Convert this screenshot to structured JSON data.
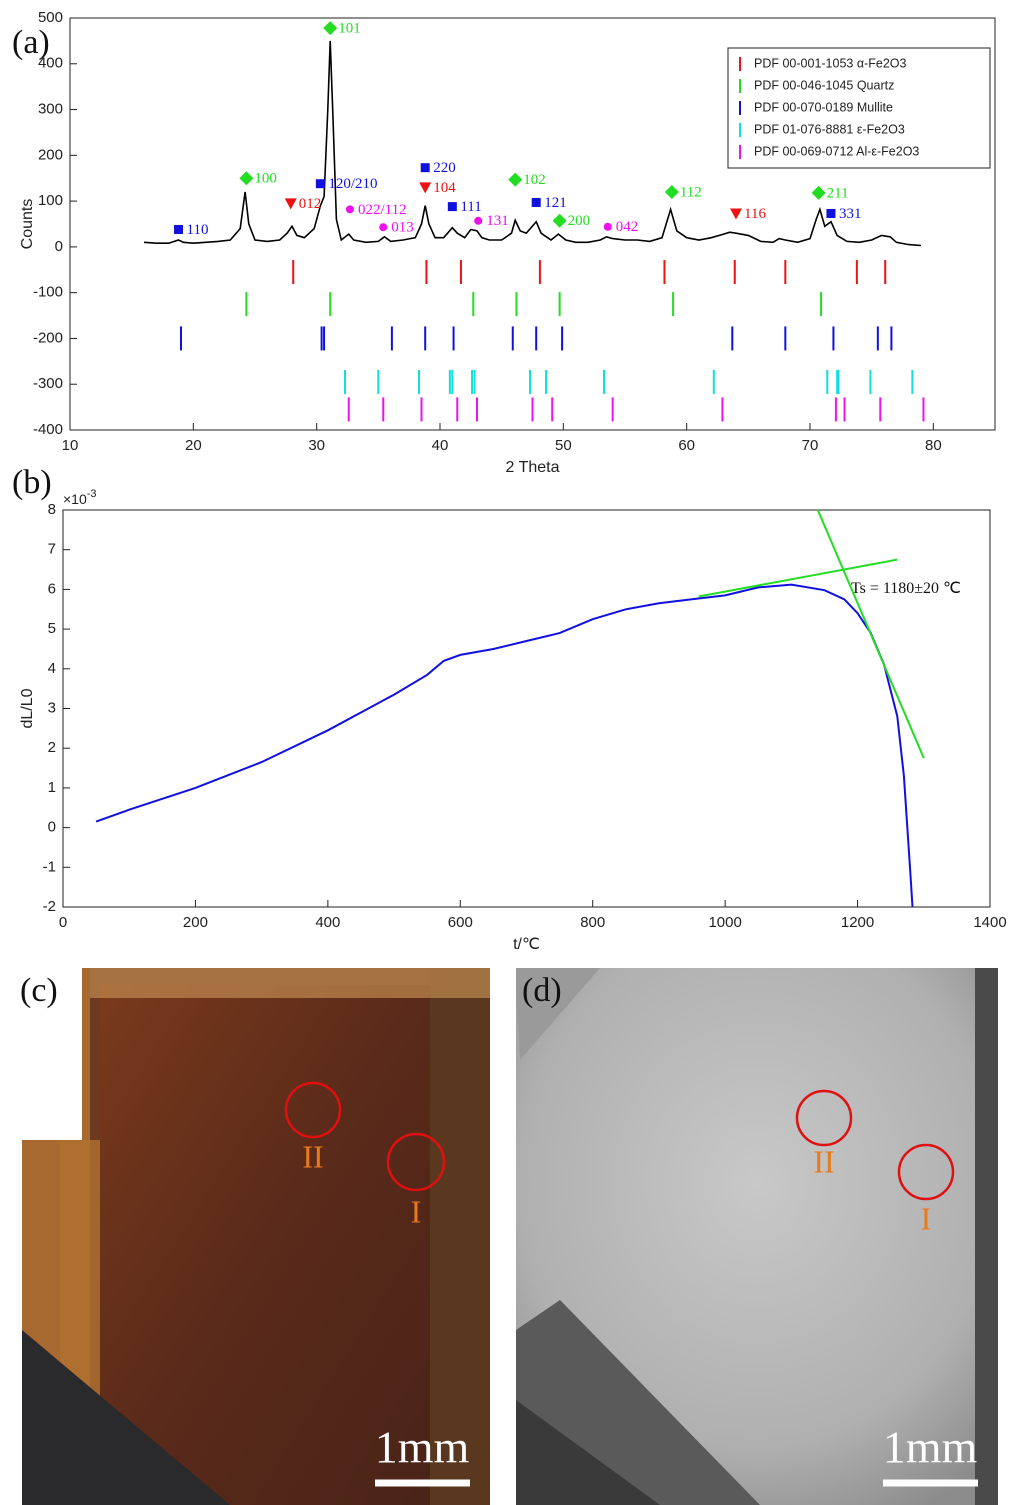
{
  "chart_data": [
    {
      "type": "line",
      "panel_label": "(a)",
      "xlabel": "2 Theta",
      "ylabel": "Counts",
      "xlim": [
        10,
        85
      ],
      "xticks": [
        10,
        20,
        30,
        40,
        50,
        60,
        70,
        80
      ],
      "ylim": [
        -400,
        500
      ],
      "yticks": [
        -400,
        -300,
        -200,
        -100,
        0,
        100,
        200,
        300,
        400,
        500
      ],
      "legend": "upper right",
      "series": [
        {
          "color": "#000000",
          "x": [
            16,
            17,
            18,
            18.8,
            19.2,
            20,
            21,
            22,
            23,
            23.8,
            24.2,
            24.5,
            25,
            26,
            27,
            27.6,
            28,
            28.4,
            29,
            29.8,
            30.3,
            30.6,
            30.9,
            31.1,
            31.3,
            31.6,
            32,
            32.6,
            33,
            34,
            35,
            35.5,
            36,
            37,
            38,
            38.5,
            38.8,
            39.1,
            39.6,
            40.3,
            41,
            41.4,
            42,
            42.5,
            43,
            43.4,
            44,
            45,
            45.8,
            46.1,
            46.5,
            47,
            47.8,
            48.2,
            49,
            49.6,
            50.2,
            51,
            52,
            53,
            53.5,
            54,
            55,
            56,
            57,
            58,
            58.7,
            59.2,
            60,
            61,
            62,
            63,
            63.5,
            64,
            65,
            66,
            67,
            67.5,
            68,
            69,
            70,
            70.5,
            70.8,
            71.2,
            71.7,
            72.2,
            73,
            74,
            75,
            75.8,
            76.5,
            77,
            78,
            79
          ],
          "values": [
            10,
            8,
            8,
            15,
            10,
            8,
            10,
            12,
            15,
            40,
            120,
            50,
            15,
            12,
            15,
            30,
            45,
            25,
            20,
            40,
            90,
            110,
            300,
            450,
            300,
            60,
            15,
            28,
            15,
            10,
            12,
            22,
            12,
            15,
            20,
            50,
            90,
            50,
            20,
            20,
            42,
            30,
            20,
            38,
            35,
            20,
            15,
            15,
            30,
            58,
            35,
            30,
            55,
            30,
            15,
            28,
            15,
            10,
            10,
            15,
            22,
            18,
            15,
            15,
            12,
            20,
            82,
            35,
            20,
            15,
            20,
            28,
            32,
            30,
            25,
            12,
            10,
            18,
            15,
            10,
            18,
            60,
            82,
            45,
            55,
            25,
            12,
            10,
            15,
            25,
            22,
            10,
            5,
            3
          ]
        }
      ],
      "reference_patterns": [
        {
          "name": "PDF 00-001-1053 α-Fe2O3",
          "color": "#ee1111",
          "level": -55,
          "x": [
            28.1,
            38.9,
            41.7,
            48.1,
            58.2,
            63.9,
            68.0,
            73.8,
            76.1
          ]
        },
        {
          "name": "PDF 00-046-1045 Quartz",
          "color": "#22dd22",
          "level": -125,
          "x": [
            24.3,
            31.1,
            42.7,
            46.2,
            49.7,
            58.9,
            70.9
          ]
        },
        {
          "name": "PDF 00-070-0189 Mullite",
          "color": "#1111dd",
          "level": -200,
          "x": [
            19.0,
            30.4,
            30.6,
            36.1,
            38.8,
            41.1,
            45.9,
            47.8,
            49.9,
            63.7,
            68.0,
            71.9,
            75.5,
            76.6
          ]
        },
        {
          "name": "PDF 01-076-8881 ε-Fe2O3",
          "color": "#11dddd",
          "level": -295,
          "x": [
            32.3,
            35.0,
            38.3,
            40.8,
            41.0,
            42.6,
            42.8,
            47.3,
            48.6,
            53.3,
            62.2,
            71.4,
            72.2,
            72.3,
            74.9,
            78.3
          ]
        },
        {
          "name": "PDF 00-069-0712 Al-ε-Fe2O3",
          "color": "#ee11ee",
          "level": -355,
          "x": [
            32.6,
            35.4,
            38.5,
            41.4,
            43.0,
            47.5,
            49.1,
            54.0,
            62.9,
            72.1,
            72.8,
            75.7,
            79.2
          ]
        }
      ],
      "annotations": [
        {
          "label": "110",
          "x": 18.8,
          "y": 38,
          "marker": "square",
          "color": "#1111dd"
        },
        {
          "label": "100",
          "x": 24.3,
          "y": 150,
          "marker": "diamond",
          "color": "#22dd22"
        },
        {
          "label": "012",
          "x": 27.9,
          "y": 95,
          "marker": "triangle",
          "color": "#ee1111"
        },
        {
          "label": "120/210",
          "x": 30.3,
          "y": 138,
          "marker": "square",
          "color": "#1111dd"
        },
        {
          "label": "101",
          "x": 31.1,
          "y": 478,
          "marker": "diamond",
          "color": "#22dd22"
        },
        {
          "label": "022/112",
          "x": 32.7,
          "y": 82,
          "marker": "circle",
          "color": "#ee11ee"
        },
        {
          "label": "013",
          "x": 35.4,
          "y": 43,
          "marker": "circle",
          "color": "#ee11ee"
        },
        {
          "label": "220",
          "x": 38.8,
          "y": 173,
          "marker": "square",
          "color": "#1111dd"
        },
        {
          "label": "104",
          "x": 38.8,
          "y": 130,
          "marker": "triangle",
          "color": "#ee1111"
        },
        {
          "label": "111",
          "x": 41.0,
          "y": 88,
          "marker": "square",
          "color": "#1111dd"
        },
        {
          "label": "131",
          "x": 43.1,
          "y": 57,
          "marker": "circle",
          "color": "#ee11ee"
        },
        {
          "label": "102",
          "x": 46.1,
          "y": 147,
          "marker": "diamond",
          "color": "#22dd22"
        },
        {
          "label": "121",
          "x": 47.8,
          "y": 97,
          "marker": "square",
          "color": "#1111dd"
        },
        {
          "label": "200",
          "x": 49.7,
          "y": 57,
          "marker": "diamond",
          "color": "#22dd22"
        },
        {
          "label": "042",
          "x": 53.6,
          "y": 44,
          "marker": "circle",
          "color": "#ee11ee"
        },
        {
          "label": "112",
          "x": 58.8,
          "y": 120,
          "marker": "diamond",
          "color": "#22dd22"
        },
        {
          "label": "116",
          "x": 64.0,
          "y": 73,
          "marker": "triangle",
          "color": "#ee1111"
        },
        {
          "label": "211",
          "x": 70.7,
          "y": 118,
          "marker": "diamond",
          "color": "#22dd22"
        },
        {
          "label": "331",
          "x": 71.7,
          "y": 73,
          "marker": "square",
          "color": "#1111dd"
        }
      ]
    },
    {
      "type": "line",
      "panel_label": "(b)",
      "xlabel": "t/℃",
      "ylabel": "dL/L0",
      "y_multiplier": {
        "base": "×10",
        "exponent": "-3"
      },
      "xlim": [
        0,
        1400
      ],
      "xticks": [
        0,
        200,
        400,
        600,
        800,
        1000,
        1200,
        1400
      ],
      "ylim": [
        -2,
        8
      ],
      "yticks": [
        -2,
        -1,
        0,
        1,
        2,
        3,
        4,
        5,
        6,
        7,
        8
      ],
      "series": [
        {
          "color": "#1010e0",
          "x": [
            50,
            100,
            200,
            300,
            400,
            500,
            550,
            575,
            600,
            650,
            700,
            750,
            800,
            850,
            900,
            950,
            1000,
            1050,
            1100,
            1150,
            1180,
            1200,
            1220,
            1240,
            1260,
            1270,
            1280,
            1283
          ],
          "values": [
            0.15,
            0.45,
            1.0,
            1.65,
            2.45,
            3.35,
            3.85,
            4.2,
            4.35,
            4.5,
            4.7,
            4.9,
            5.25,
            5.5,
            5.65,
            5.75,
            5.85,
            6.05,
            6.12,
            5.98,
            5.75,
            5.4,
            4.9,
            4.1,
            2.8,
            1.3,
            -1.2,
            -2
          ]
        },
        {
          "color": "#22dd22",
          "x": [
            960,
            1260
          ],
          "values": [
            5.82,
            6.75
          ]
        },
        {
          "color": "#22dd22",
          "x": [
            1140,
            1300
          ],
          "values": [
            8,
            1.75
          ]
        }
      ],
      "annotations": [
        {
          "label": "Ts = 1180±20 ℃",
          "x": 1190,
          "y": 6.0
        }
      ]
    }
  ],
  "panels": [
    {
      "label": "(c)",
      "regions": [
        "II",
        "I"
      ],
      "scale_bar": "1mm"
    },
    {
      "label": "(d)",
      "regions": [
        "II",
        "I"
      ],
      "scale_bar": "1mm"
    }
  ]
}
